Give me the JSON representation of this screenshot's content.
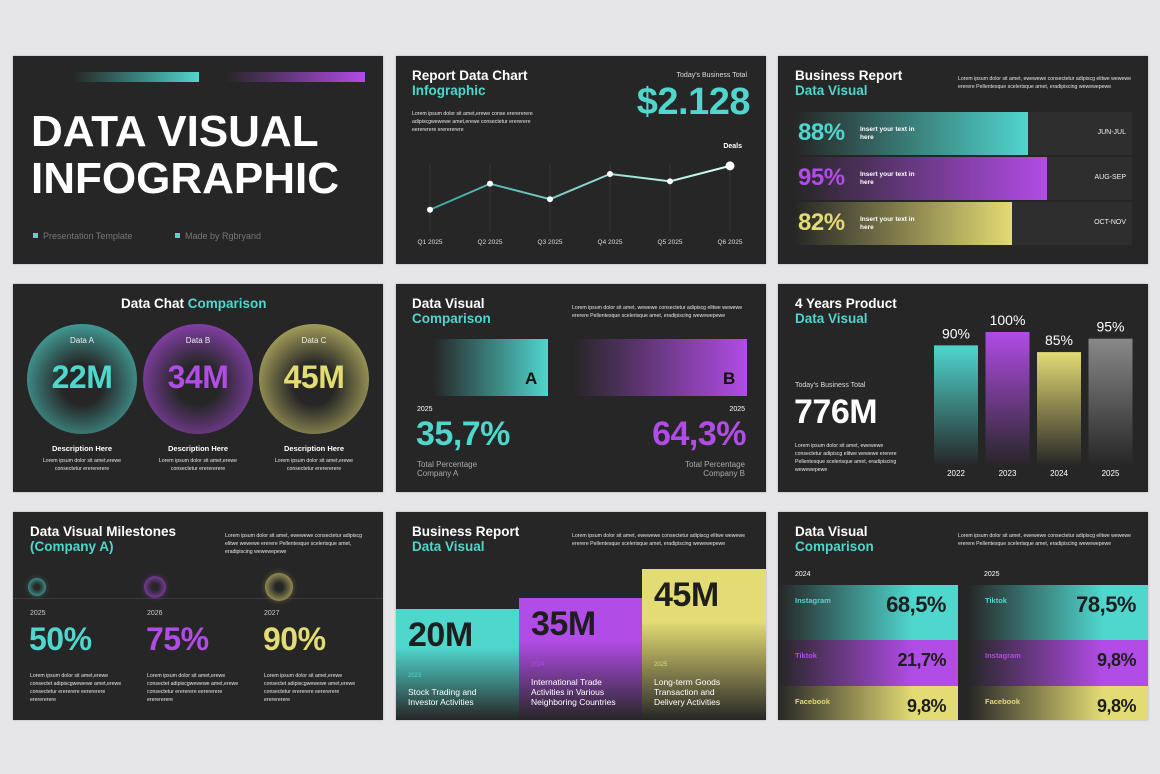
{
  "colors": {
    "teal": "#4fd6cd",
    "purple": "#b14ce6",
    "yellow": "#e3db74",
    "bg": "#262626"
  },
  "s1": {
    "title1": "DATA VISUAL",
    "title2": "INFOGRAPHIC",
    "footer_left": "Presentation Template",
    "footer_right": "Made by Rgbryand"
  },
  "s2": {
    "title": "Report Data Chart",
    "subtitle": "Infographic",
    "total_label": "Today's Business Total",
    "total_value": "$2.128",
    "body": "Lorem ipsum dolor sit amet,erewe conse ererererere adipiscgwewewe amet,erewe consectetur erererere eerererere ererererere",
    "deals_label": "Deals",
    "chart_data": {
      "type": "line",
      "categories": [
        "Q1 2025",
        "Q2 2025",
        "Q3 2025",
        "Q4 2025",
        "Q5 2025",
        "Q6 2025"
      ],
      "series": [
        {
          "name": "Deals",
          "values": [
            2,
            5.2,
            3.3,
            6.4,
            5.5,
            7.4
          ]
        }
      ]
    }
  },
  "s3": {
    "title": "Business Report",
    "subtitle": "Data Visual",
    "body": "Lorem ipsum dolor sit amet, ewewewe consectetur adipiscg elitwe wewewe ererere Pellentesque scelerisque amet, eradipiscing wewewepewe",
    "rows": [
      {
        "pct": "88%",
        "text": "Insert your text in here",
        "period": "JUN-JUL",
        "value": 0.88
      },
      {
        "pct": "95%",
        "text": "Insert your text in here",
        "period": "AUG-SEP",
        "value": 0.95
      },
      {
        "pct": "82%",
        "text": "Insert your text in here",
        "period": "OCT-NOV",
        "value": 0.82
      }
    ]
  },
  "s4": {
    "title_a": "Data Chat",
    "title_b": "Comparison",
    "items": [
      {
        "label": "Data A",
        "value": "22M",
        "desc": "Description Here",
        "body": "Lorem ipsum dolor sit amet,erewe consectetur ererererere"
      },
      {
        "label": "Data B",
        "value": "34M",
        "desc": "Description Here",
        "body": "Lorem ipsum dolor sit amet,erewe consectetur ererererere"
      },
      {
        "label": "Data C",
        "value": "45M",
        "desc": "Description Here",
        "body": "Lorem ipsum dolor sit amet,erewe consectetur ererererere"
      }
    ]
  },
  "s5": {
    "title": "Data Visual",
    "subtitle": "Comparison",
    "body": "Lorem ipsum dolor sit amet, wewewe consectetur adipiscg elitwe wewewe ererere Pellentesque scelerisque amet, eradipiscing wewewepewe",
    "letter_a": "A",
    "letter_b": "B",
    "year_a": "2025",
    "year_b": "2025",
    "value_a": "35,7%",
    "value_b": "64,3%",
    "cap_a1": "Total Percentage",
    "cap_a2": "Company A",
    "cap_b1": "Total Percentage",
    "cap_b2": "Company B"
  },
  "s6": {
    "title": "4 Years Product",
    "subtitle": "Data Visual",
    "total_label": "Today's Business Total",
    "total_value": "776M",
    "body": "Lorem ipsum dolor sit amet, ewewewe consectetur adipiscg elitwe wewewe ererere Pellentesque scelerisque amet, eradipiscing wewewepewe",
    "chart_data": {
      "type": "bar",
      "categories": [
        "2022",
        "2023",
        "2024",
        "2025"
      ],
      "values": [
        90,
        100,
        85,
        95
      ],
      "labels": [
        "90%",
        "100%",
        "85%",
        "95%"
      ],
      "ylim": [
        0,
        100
      ]
    }
  },
  "s7": {
    "title": "Data Visual Milestones",
    "subtitle": "(Company A)",
    "body": "Lorem ipsum dolor sit amet, ewewewe consectetur adipiscg elitwe wewewe ererere Pellentesque scelerisque amet, eradipiscing wewewepewe",
    "items": [
      {
        "year": "2025",
        "value": "50%",
        "body": "Lorem ipsum dolor sit amet,erewe consectet adipiscgwewewe amet,erewe consectetur erererere eerererere ererererere"
      },
      {
        "year": "2026",
        "value": "75%",
        "body": "Lorem ipsum dolor sit amet,erewe consectet adipiscgwewewe amet,erewe consectetur erererere eerererere ererererere"
      },
      {
        "year": "2027",
        "value": "90%",
        "body": "Lorem ipsum dolor sit amet,erewe consectet adipiscgwewewe amet,erewe consectetur erererere eerererere ererererere"
      }
    ]
  },
  "s8": {
    "title": "Business Report",
    "subtitle": "Data Visual",
    "body": "Lorem ipsum dolor sit amet, ewewewe consectetur adipiscg elitwe wewewe ererere Pellentesque scelerisque amet, eradipiscing wewewepewe",
    "cols": [
      {
        "value": "20M",
        "year": "2023",
        "line1": "Stock Trading and",
        "line2": "Investor Activities",
        "line3": ""
      },
      {
        "value": "35M",
        "year": "2024",
        "line1": "International Trade",
        "line2": "Activities in Various",
        "line3": "Neighboring Countries"
      },
      {
        "value": "45M",
        "year": "2025",
        "line1": "Long-term Goods",
        "line2": "Transaction and",
        "line3": "Delivery Activities"
      }
    ]
  },
  "s9": {
    "title": "Data Visual",
    "subtitle": "Comparison",
    "body": "Lorem ipsum dolor sit amet, ewewewe consectetur adipiscg elitwe wewewe ererere Pellentesque scelerisque amet, eradipiscing wewewepewe",
    "year_l": "2024",
    "year_r": "2025",
    "left": [
      {
        "name": "Instagram",
        "value": "68,5%"
      },
      {
        "name": "Tiktok",
        "value": "21,7%"
      },
      {
        "name": "Facebook",
        "value": "9,8%"
      }
    ],
    "right": [
      {
        "name": "Tiktok",
        "value": "78,5%"
      },
      {
        "name": "Instagram",
        "value": "9,8%"
      },
      {
        "name": "Facebook",
        "value": "9,8%"
      }
    ]
  }
}
